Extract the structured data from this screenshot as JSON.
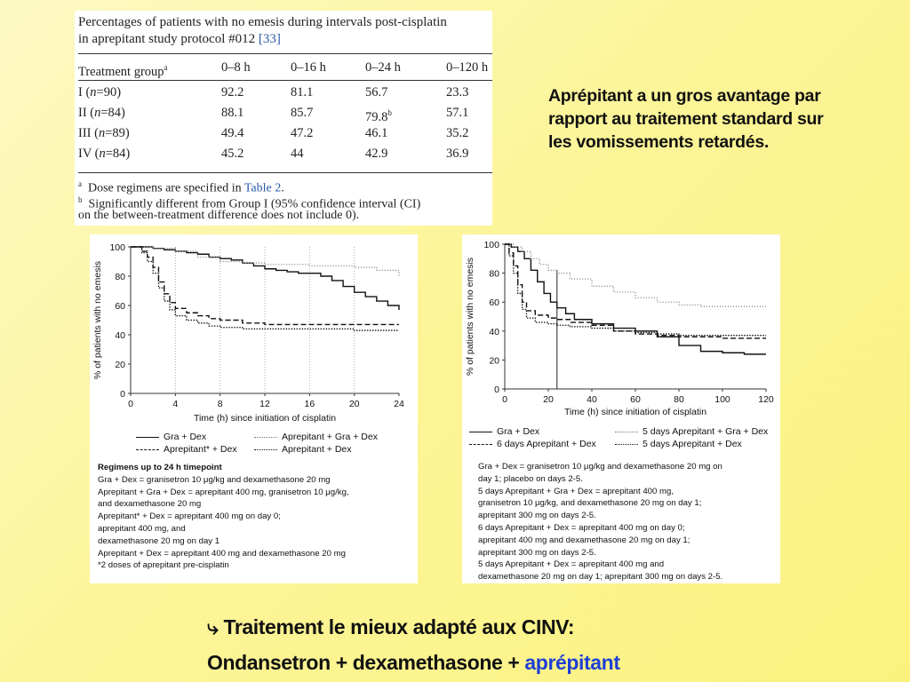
{
  "table": {
    "title_line1": "Percentages of patients with no emesis during intervals post-cisplatin",
    "title_line2": "in aprepitant study protocol #012 ",
    "title_ref": "[33]",
    "header_group": "Treatment group",
    "header_group_sup": "a",
    "columns": [
      "0–8 h",
      "0–16 h",
      "0–24 h",
      "0–120 h"
    ],
    "rows": [
      {
        "group": "I (",
        "n": "n",
        "count": "=90)",
        "values": [
          "92.2",
          "81.1",
          "56.7",
          "23.3"
        ],
        "sup": ""
      },
      {
        "group": "II (",
        "n": "n",
        "count": "=84)",
        "values": [
          "88.1",
          "85.7",
          "79.8",
          "57.1"
        ],
        "sup": "b"
      },
      {
        "group": "III (",
        "n": "n",
        "count": "=89)",
        "values": [
          "49.4",
          "47.2",
          "46.1",
          "35.2"
        ],
        "sup": ""
      },
      {
        "group": "IV (",
        "n": "n",
        "count": "=84)",
        "values": [
          "45.2",
          "44",
          "42.9",
          "36.9"
        ],
        "sup": ""
      }
    ],
    "footnote_a_mark": "a",
    "footnote_a_text": "Dose regimens are specified in ",
    "footnote_a_link": "Table 2",
    "footnote_a_end": ".",
    "footnote_b_mark": "b",
    "footnote_b_text": "Significantly different from Group I (95% confidence interval (CI)",
    "footnote_b_text2": "on the between-treatment difference does not include 0)."
  },
  "comment": {
    "line1": "Aprépitant a un gros avantage par",
    "line2": "rapport au traitement standard sur",
    "line3": "les vomissements retardés."
  },
  "conclusion": {
    "arrow": "⤷",
    "line1": "Traitement le mieux adapté aux CINV:",
    "line2_prefix": "Ondansetron + dexamethasone + ",
    "line2_highlight": "aprépitant"
  },
  "colors": {
    "accent": "#1f3fd6",
    "background": "#fbf27e"
  },
  "chart_data": [
    {
      "type": "line",
      "title": "",
      "xlabel": "Time (h) since initiation of cisplatin",
      "ylabel": "% of patients with no emesis",
      "xlim": [
        0,
        24
      ],
      "ylim": [
        0,
        100
      ],
      "xticks": [
        0,
        4,
        8,
        12,
        16,
        20,
        24
      ],
      "yticks": [
        0,
        20,
        40,
        60,
        80,
        100
      ],
      "grid": "vertical dotted",
      "series": [
        {
          "name": "Gra + Dex",
          "style": "solid",
          "x": [
            0,
            1,
            2,
            3,
            4,
            5,
            6,
            7,
            8,
            9,
            10,
            11,
            12,
            13,
            14,
            15,
            16,
            17,
            18,
            19,
            20,
            21,
            22,
            23,
            24
          ],
          "y": [
            100,
            100,
            99,
            98,
            97,
            96,
            95,
            93,
            92,
            91,
            89,
            87,
            85,
            84,
            83,
            82,
            82,
            80,
            77,
            73,
            69,
            66,
            63,
            60,
            57
          ]
        },
        {
          "name": "Aprepitant + Gra + Dex",
          "style": "dotted",
          "x": [
            0,
            2,
            4,
            6,
            8,
            10,
            12,
            14,
            16,
            18,
            20,
            22,
            24
          ],
          "y": [
            100,
            99,
            97,
            93,
            90,
            89,
            88,
            88,
            87,
            87,
            86,
            84,
            80
          ]
        },
        {
          "name": "Aprepitant* + Dex",
          "style": "dashed",
          "x": [
            0,
            1,
            1.5,
            2,
            2.5,
            3,
            3.5,
            4,
            5,
            6,
            7,
            8,
            10,
            12,
            16,
            20,
            24
          ],
          "y": [
            100,
            97,
            93,
            86,
            76,
            68,
            62,
            58,
            55,
            53,
            51,
            50,
            48,
            47,
            47,
            47,
            47
          ]
        },
        {
          "name": "Aprepitant + Dex",
          "style": "dotted-dense",
          "x": [
            0,
            1,
            1.5,
            2,
            2.5,
            3,
            3.5,
            4,
            5,
            6,
            7,
            8,
            10,
            12,
            16,
            20,
            24
          ],
          "y": [
            100,
            96,
            90,
            82,
            72,
            63,
            57,
            53,
            50,
            48,
            46,
            45,
            44,
            44,
            44,
            43,
            43
          ]
        }
      ],
      "legend": [
        "Gra + Dex",
        "Aprepitant + Gra + Dex",
        "Aprepitant* + Dex",
        "Aprepitant + Dex"
      ],
      "notes": [
        "Regimens up to 24 h timepoint",
        "Gra + Dex = granisetron 10 μg/kg and dexamethasone 20 mg",
        "Aprepitant + Gra + Dex = aprepitant 400 mg, granisetron 10 μg/kg,",
        "and dexamethasone 20 mg",
        "Aprepitant* + Dex = aprepitant 400 mg on day 0;",
        "aprepitant 400 mg, and",
        "dexamethasone 20 mg on day 1",
        "Aprepitant + Dex = aprepitant 400 mg and dexamethasone 20 mg",
        "*2 doses of aprepitant pre-cisplatin"
      ]
    },
    {
      "type": "line",
      "title": "",
      "xlabel": "Time (h) since initiation of cisplatin",
      "ylabel": "% of patients with no emesis",
      "xlim": [
        0,
        120
      ],
      "ylim": [
        0,
        100
      ],
      "xticks": [
        0,
        20,
        40,
        60,
        80,
        100,
        120
      ],
      "xtick_labels": [
        "0",
        "20",
        "40",
        "60",
        "80",
        "100",
        "120"
      ],
      "yticks": [
        0,
        20,
        40,
        60,
        80,
        100
      ],
      "reference_line_x": 24,
      "series": [
        {
          "name": "Gra + Dex",
          "style": "solid",
          "x": [
            0,
            3,
            6,
            9,
            12,
            15,
            18,
            21,
            24,
            28,
            32,
            40,
            50,
            60,
            70,
            80,
            90,
            100,
            110,
            120
          ],
          "y": [
            100,
            98,
            95,
            90,
            82,
            74,
            66,
            60,
            56,
            52,
            48,
            45,
            42,
            40,
            36,
            30,
            26,
            25,
            24,
            24
          ]
        },
        {
          "name": "5 days Aprepitant + Gra + Dex",
          "style": "dotted",
          "x": [
            0,
            4,
            8,
            12,
            16,
            20,
            24,
            30,
            40,
            50,
            60,
            70,
            80,
            90,
            100,
            110,
            120
          ],
          "y": [
            100,
            98,
            95,
            90,
            86,
            82,
            80,
            76,
            71,
            67,
            63,
            60,
            58,
            57,
            57,
            57,
            57
          ]
        },
        {
          "name": "6 days Aprepitant + Dex",
          "style": "dashed",
          "x": [
            0,
            2,
            4,
            6,
            8,
            10,
            14,
            20,
            24,
            30,
            40,
            50,
            60,
            70,
            80,
            100,
            120
          ],
          "y": [
            100,
            94,
            85,
            72,
            60,
            54,
            51,
            49,
            48,
            46,
            44,
            40,
            38,
            37,
            36,
            35,
            35
          ]
        },
        {
          "name": "5 days Aprepitant + Dex",
          "style": "dotted-dense",
          "x": [
            0,
            2,
            4,
            6,
            8,
            10,
            14,
            20,
            24,
            30,
            40,
            50,
            60,
            70,
            80,
            100,
            120
          ],
          "y": [
            100,
            92,
            80,
            66,
            55,
            49,
            46,
            45,
            44,
            43,
            42,
            40,
            39,
            38,
            37,
            37,
            37
          ]
        }
      ],
      "legend": [
        "Gra + Dex",
        "5 days Aprepitant + Gra + Dex",
        "6 days Aprepitant + Dex",
        "5 days Aprepitant + Dex"
      ],
      "notes": [
        "Gra + Dex = granisetron 10 μg/kg and dexamethasone 20 mg on",
        "day 1; placebo on days 2-5.",
        "5 days Aprepitant + Gra + Dex = aprepitant 400 mg,",
        "granisetron 10 μg/kg, and dexamethasone 20 mg on day 1;",
        "aprepitant 300 mg on days 2-5.",
        "6 days Aprepitant + Dex = aprepitant 400 mg on day 0;",
        "aprepitant 400 mg and dexamethasone 20 mg on day 1;",
        "aprepitant 300 mg on days 2-5.",
        "5 days Aprepitant + Dex = aprepitant 400 mg and",
        "dexamethasone 20 mg on day 1; aprepitant 300 mg on days 2-5."
      ]
    }
  ]
}
